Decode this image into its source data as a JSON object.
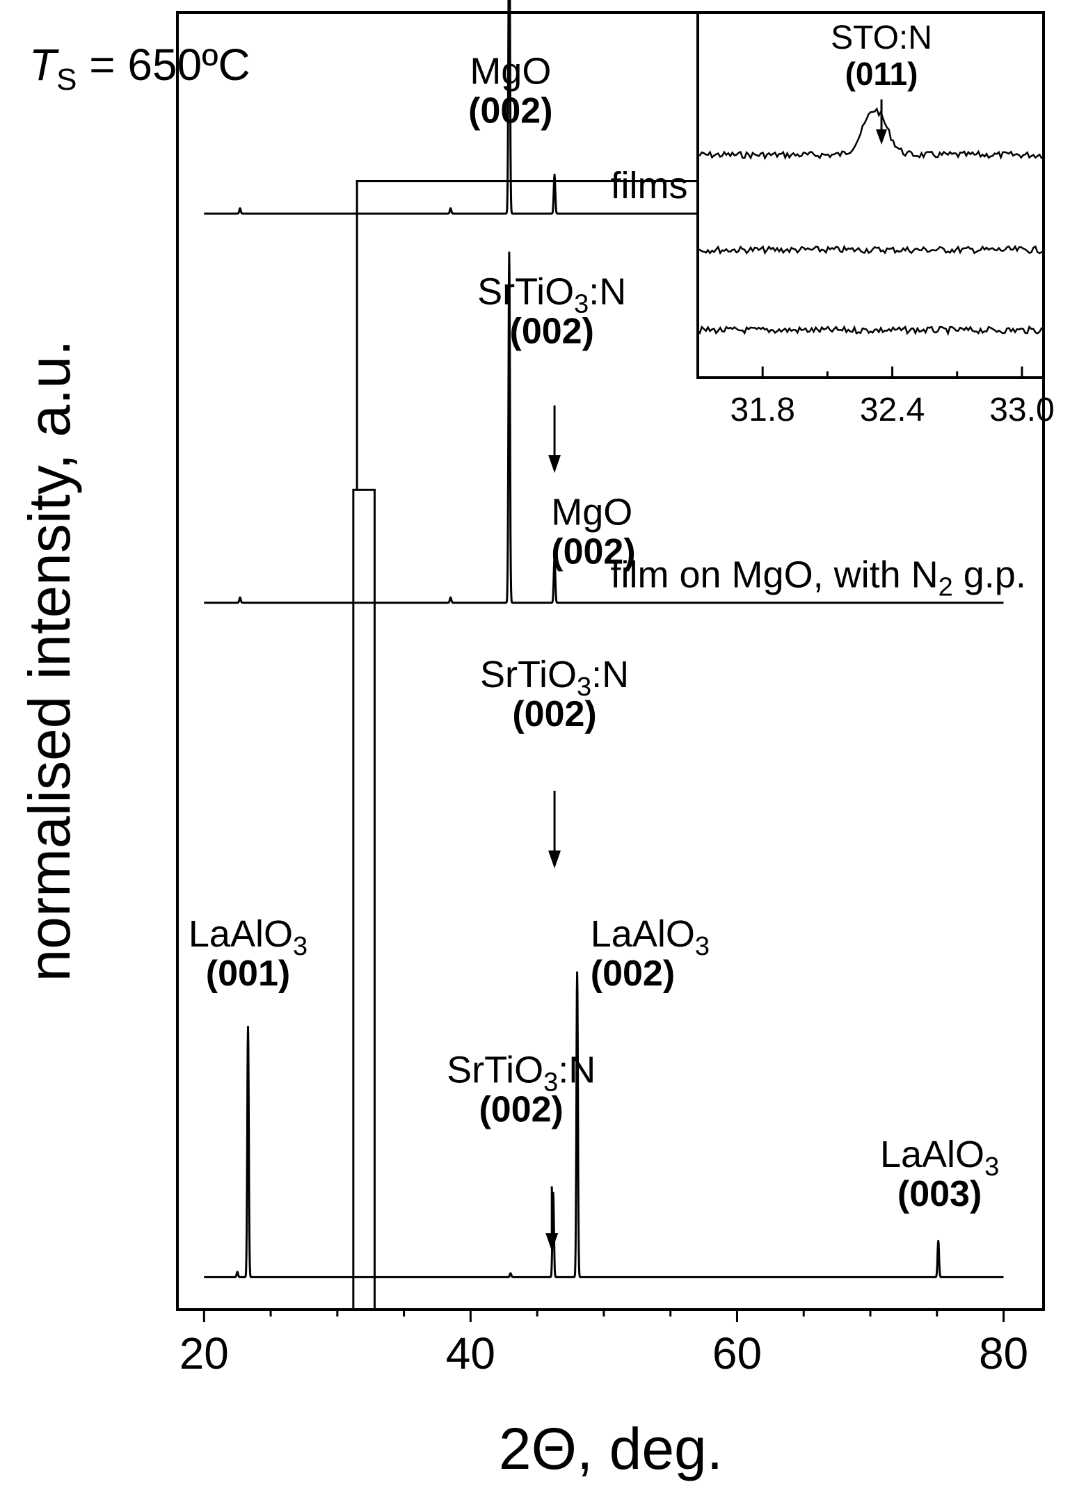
{
  "chart_data": {
    "type": "line",
    "xlabel": "2Θ, deg.",
    "ylabel": "normalised intensity, a.u.",
    "xlim": [
      18,
      83
    ],
    "xticks": [
      20,
      40,
      60,
      80
    ],
    "x_minor_step": 5,
    "condition": {
      "T_main": "T",
      "T_sub": "S",
      "rest": " = 650ºC"
    },
    "series": [
      {
        "name": "films on MgO, in vacuum",
        "baseline": 0.155,
        "peaks": [
          {
            "x": 22.7,
            "h": 0.004
          },
          {
            "x": 38.5,
            "h": 0.004
          },
          {
            "x": 42.9,
            "h": 0.258
          },
          {
            "x": 46.3,
            "h": 0.03
          }
        ]
      },
      {
        "name": "film on MgO, with N",
        "name_sub": "2",
        "name_end": " g.p.",
        "baseline": 0.455,
        "peaks": [
          {
            "x": 22.7,
            "h": 0.004
          },
          {
            "x": 38.5,
            "h": 0.004
          },
          {
            "x": 42.9,
            "h": 0.27
          },
          {
            "x": 46.3,
            "h": 0.035
          }
        ]
      },
      {
        "name": "",
        "baseline": 0.975,
        "peaks": [
          {
            "x": 22.5,
            "h": 0.004
          },
          {
            "x": 23.3,
            "h": 0.193
          },
          {
            "x": 43.0,
            "h": 0.003
          },
          {
            "x": 46.2,
            "h": 0.065
          },
          {
            "x": 48.0,
            "h": 0.235
          },
          {
            "x": 75.1,
            "h": 0.028
          }
        ]
      }
    ],
    "peak_labels": [
      {
        "x": 43.0,
        "y": 0.085,
        "main": "MgO",
        "hkl": "(002)"
      },
      {
        "x": 46.1,
        "y": 0.255,
        "main": "SrTiO",
        "sub": "3",
        "post": ":N",
        "hkl": "(002)"
      },
      {
        "x": 46.1,
        "y": 0.425,
        "main": "MgO",
        "hkl": "(002)",
        "anchor": "start",
        "dx": -0.05
      },
      {
        "x": 46.3,
        "y": 0.55,
        "main": "SrTiO",
        "sub": "3",
        "post": ":N",
        "hkl": "(002)"
      },
      {
        "x": 23.3,
        "y": 0.75,
        "main": "LaAlO",
        "sub": "3",
        "hkl": "(001)"
      },
      {
        "x": 49.0,
        "y": 0.75,
        "main": "LaAlO",
        "sub": "3",
        "hkl": "(002)",
        "anchor": "start"
      },
      {
        "x": 43.8,
        "y": 0.855,
        "main": "SrTiO",
        "sub": "3",
        "post": ":N",
        "hkl": "(002)"
      },
      {
        "x": 75.2,
        "y": 0.92,
        "main": "LaAlO",
        "sub": "3",
        "hkl": "(003)"
      }
    ],
    "arrows": [
      {
        "x": 46.3,
        "y0": 0.303,
        "y1": 0.355
      },
      {
        "x": 46.3,
        "y0": 0.6,
        "y1": 0.66
      },
      {
        "x": 46.1,
        "y0": 0.905,
        "y1": 0.955
      }
    ],
    "highlight_box": {
      "x0": 31.2,
      "x1": 32.8,
      "y_top": 0.368
    },
    "inset": {
      "xlim": [
        31.5,
        33.1
      ],
      "xticks": [
        31.8,
        32.4,
        33.0
      ],
      "x_minor_step": 0.3,
      "peak_label": {
        "x": 32.35,
        "main": "STO:N",
        "hkl": "(011)"
      },
      "traces": [
        {
          "baseline": 0.39,
          "peak_x": 32.32,
          "peak_h": 0.44
        },
        {
          "baseline": 0.65,
          "peak_x": 0,
          "peak_h": 0
        },
        {
          "baseline": 0.87,
          "peak_x": 0,
          "peak_h": 0
        }
      ]
    }
  }
}
